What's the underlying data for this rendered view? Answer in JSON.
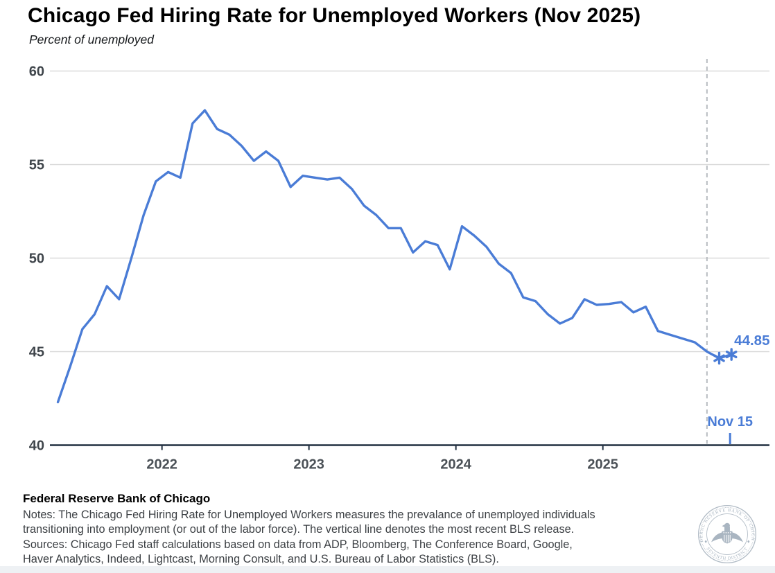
{
  "header": {
    "title": "Chicago Fed Hiring Rate for Unemployed Workers (Nov 2025)",
    "subtitle": "Percent of unemployed"
  },
  "chart_data": {
    "type": "line",
    "title": "Chicago Fed Hiring Rate for Unemployed Workers (Nov 2025)",
    "ylabel": "Percent of unemployed",
    "xlabel": "",
    "ylim": [
      40,
      60
    ],
    "yticks": [
      40,
      45,
      50,
      55,
      60
    ],
    "xticks": [
      "2022",
      "2023",
      "2024",
      "2025"
    ],
    "grid": true,
    "legend": "none",
    "frequency": "monthly",
    "months": [
      "2021-04",
      "2021-05",
      "2021-06",
      "2021-07",
      "2021-08",
      "2021-09",
      "2021-10",
      "2021-11",
      "2021-12",
      "2022-01",
      "2022-02",
      "2022-03",
      "2022-04",
      "2022-05",
      "2022-06",
      "2022-07",
      "2022-08",
      "2022-09",
      "2022-10",
      "2022-11",
      "2022-12",
      "2023-01",
      "2023-02",
      "2023-03",
      "2023-04",
      "2023-05",
      "2023-06",
      "2023-07",
      "2023-08",
      "2023-09",
      "2023-10",
      "2023-11",
      "2023-12",
      "2024-01",
      "2024-02",
      "2024-03",
      "2024-04",
      "2024-05",
      "2024-06",
      "2024-07",
      "2024-08",
      "2024-09",
      "2024-10",
      "2024-11",
      "2024-12",
      "2025-01",
      "2025-02",
      "2025-03",
      "2025-04",
      "2025-05",
      "2025-06",
      "2025-07",
      "2025-08",
      "2025-09",
      "2025-10",
      "2025-11"
    ],
    "values": [
      42.3,
      44.2,
      46.2,
      47.0,
      48.5,
      47.8,
      50.0,
      52.3,
      54.1,
      54.6,
      54.3,
      57.2,
      57.9,
      56.9,
      56.6,
      56.0,
      55.2,
      55.7,
      55.2,
      53.8,
      54.4,
      54.3,
      54.2,
      54.3,
      53.7,
      52.8,
      52.3,
      51.6,
      51.6,
      50.3,
      50.9,
      50.7,
      49.4,
      51.7,
      51.2,
      50.6,
      49.7,
      49.2,
      47.9,
      47.7,
      47.0,
      46.5,
      46.8,
      47.8,
      47.5,
      47.55,
      47.65,
      47.1,
      47.4,
      46.1,
      45.9,
      45.7,
      45.5,
      45.0,
      44.65,
      44.85
    ],
    "series_color": "#4a7cd6",
    "estimated_points": {
      "count": 2,
      "marker": "asterisk"
    },
    "annotations": {
      "last_value_label": "44.85",
      "last_point_label": "Nov 15",
      "vline_month": "2025-09",
      "vline_style": "dashed"
    }
  },
  "footer": {
    "org": "Federal Reserve Bank of Chicago",
    "lines": [
      "Notes: The Chicago Fed Hiring Rate for Unemployed Workers measures the prevalance of unemployed individuals",
      "transitioning into employment (or out of the labor force). The vertical line denotes the most recent BLS release.",
      "Sources: Chicago Fed staff calculations based on data from ADP, Bloomberg, The Conference Board, Google,",
      "Haver Analytics, Indeed, Lightcast, Morning Consult, and U.S. Bureau of Labor Statistics (BLS)."
    ]
  },
  "seal": {
    "ring_text": "FEDERAL RESERVE BANK OF CHICAGO",
    "bottom_text": "SEVENTH DISTRICT",
    "color": "#a9b5c1"
  },
  "colors": {
    "grid": "#d9d9d9",
    "axis": "#223041",
    "vline": "#b8bcc0",
    "tick_label": "#3f454b",
    "year_label": "#4b5157"
  }
}
